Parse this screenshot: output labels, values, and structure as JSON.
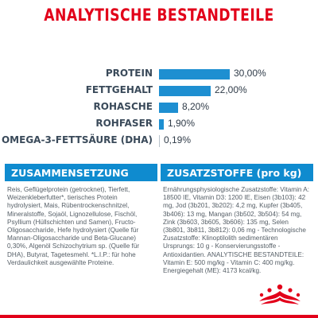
{
  "title": "ANALYTISCHE BESTANDTEILE",
  "colors": {
    "accent_red": "#e2001a",
    "bar_blue": "#1e8fd1",
    "label_dark": "#3a4a5a"
  },
  "chart_data": {
    "type": "bar",
    "orientation": "horizontal",
    "categories": [
      "PROTEIN",
      "FETTGEHALT",
      "ROHASCHE",
      "ROHFASER",
      "OMEGA-3-FETTSÄURE (DHA)"
    ],
    "values": [
      30.0,
      22.0,
      8.2,
      1.9,
      0.19
    ],
    "value_labels": [
      "30,00%",
      "22,00%",
      "8,20%",
      "1,90%",
      "0,19%"
    ],
    "xlim": [
      0,
      33
    ],
    "title": "",
    "xlabel": "",
    "ylabel": ""
  },
  "composition": {
    "heading": "ZUSAMMENSETZUNG",
    "text": "Reis, Geflügelprotein (getrocknet), Tierfett, Weizenkleberfutter*, tierisches Protein hydrolysiert, Mais, Rübentrockenschnitzel, Mineralstoffe, Sojaöl, Lignozellulose, Fischöl, Psyllium (Hüllschichten und Samen), Fructo-Oligosaccharide, Hefe hydrolysiert (Quelle für Mannan-Oligosaccharide und Beta-Glucane) 0,30%, Algenöl Schizochytrium sp. (Quelle für DHA), Butyrat, Tagetesmehl. *L.I.P.: für hohe Verdaulichkeit ausgewählte Proteine."
  },
  "additives": {
    "heading": "ZUSATZSTOFFE (pro kg)",
    "text": "Ernährungsphysiologische Zusatzstoffe: Vitamin A: 18500 IE, Vitamin D3: 1200 IE, Eisen (3b103): 42 mg, Jod (3b201, 3b202): 4,2 mg, Kupfer (3b405, 3b406): 13 mg, Mangan (3b502, 3b504): 54 mg, Zink (3b603, 3b605, 3b606): 135 mg, Selen (3b801, 3b811, 3b812): 0,06 mg - Technologische Zusatzstoffe: Klinoptilolith sedimentären Ursprungs: 10 g - Konservierungsstoffe - Antioxidantien. ANALYTISCHE BESTANDTEILE: Vitamin E: 500 mg/kg - Vitamin C: 400 mg/kg. Energiegehalt (ME): 4173 kcal/kg."
  },
  "logo": {
    "icon": "royal-canin-crown-icon"
  }
}
